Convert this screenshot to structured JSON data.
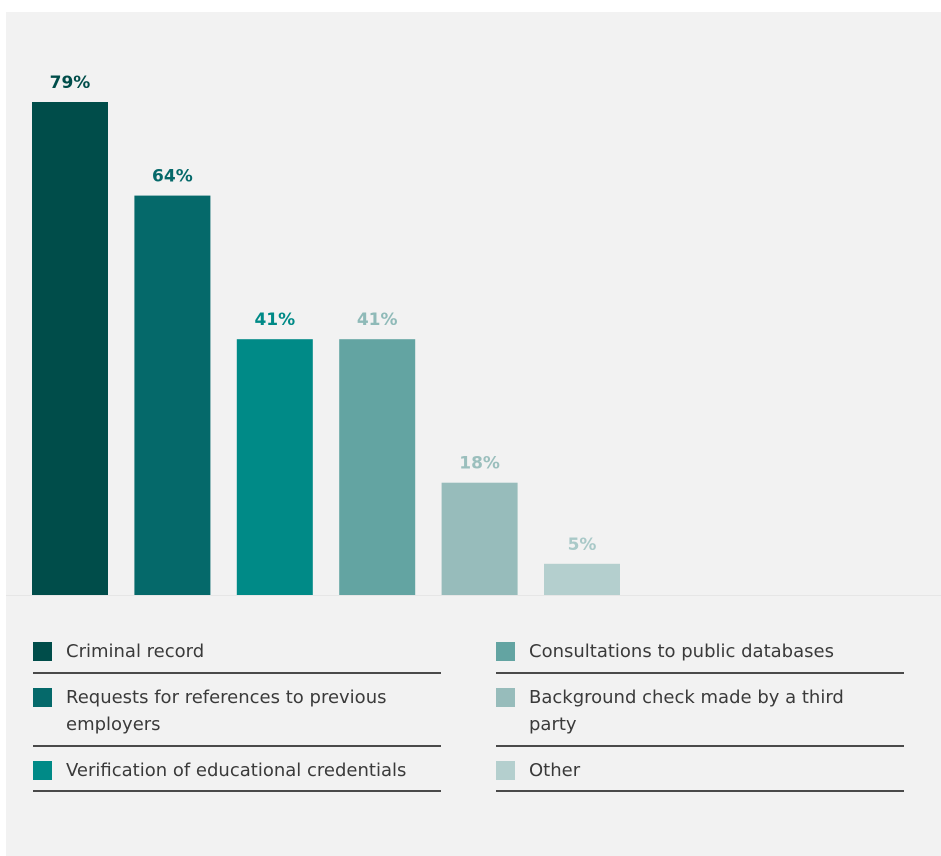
{
  "chart_data": {
    "type": "bar",
    "categories": [
      "Criminal record",
      "Requests for references to previous employers",
      "Verification of educational credentials",
      "Consultations to public databases",
      "Background check made by a third party",
      "Other"
    ],
    "values": [
      79,
      64,
      41,
      41,
      18,
      5
    ],
    "value_labels": [
      "79%",
      "64%",
      "41%",
      "41%",
      "18%",
      "5%"
    ],
    "colors": [
      "#004d4a",
      "#05696a",
      "#008a87",
      "#63a4a2",
      "#97bcbb",
      "#b4cfce"
    ],
    "label_colors": [
      "#004d4a",
      "#05696a",
      "#008a87",
      "#8fbab8",
      "#9bbfbd",
      "#a9c9c8"
    ],
    "ylim": [
      0,
      100
    ],
    "grid": false,
    "legend_position": "bottom"
  }
}
